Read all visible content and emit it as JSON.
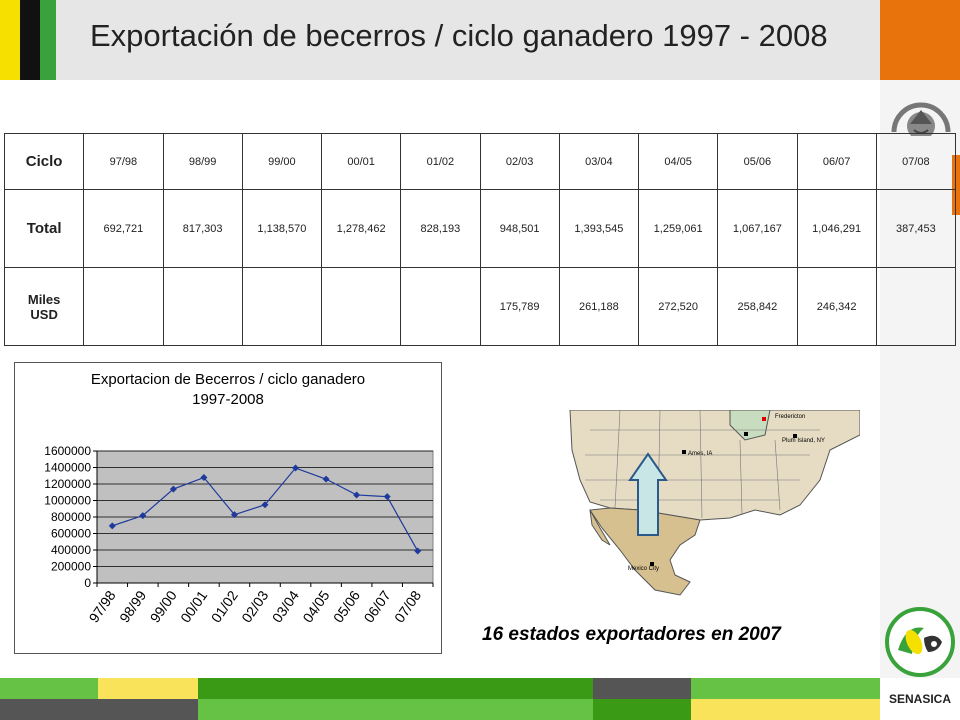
{
  "title": "Exportación de becerros / ciclo ganadero 1997 - 2008",
  "table": {
    "header_label": "Ciclo",
    "cycles": [
      "97/98",
      "98/99",
      "99/00",
      "00/01",
      "01/02",
      "02/03",
      "03/04",
      "04/05",
      "05/06",
      "06/07",
      "07/08"
    ],
    "total_label": "Total",
    "totals": [
      "692,721",
      "817,303",
      "1,138,570",
      "1,278,462",
      "828,193",
      "948,501",
      "1,393,545",
      "1,259,061",
      "1,067,167",
      "1,046,291",
      "387,453"
    ],
    "usd_label_1": "Miles",
    "usd_label_2": "USD",
    "usd": [
      "",
      "",
      "",
      "",
      "",
      "175,789",
      "261,188",
      "272,520",
      "258,842",
      "246,342",
      ""
    ]
  },
  "chart_data": {
    "type": "line",
    "title": "Exportacion de Becerros / ciclo ganadero",
    "subtitle": "1997-2008",
    "categories": [
      "97/98",
      "98/99",
      "99/00",
      "00/01",
      "01/02",
      "02/03",
      "03/04",
      "04/05",
      "05/06",
      "06/07",
      "07/08"
    ],
    "values": [
      692721,
      817303,
      1138570,
      1278462,
      828193,
      948501,
      1393545,
      1259061,
      1067167,
      1046291,
      387453
    ],
    "yticks": [
      "0",
      "200000",
      "400000",
      "600000",
      "800000",
      "1000000",
      "1200000",
      "1400000",
      "1600000"
    ],
    "ylim": [
      0,
      1600000
    ],
    "grid": true,
    "line_color": "#1f3a9c",
    "plot_bg": "#c0c0c0"
  },
  "map": {
    "labels": [
      "Fredericton",
      "Ames, IA",
      "Plum Island, NY",
      "Mexico City"
    ]
  },
  "caption": "16 estados exportadores en 2007",
  "footer": {
    "brand": "SENASICA"
  },
  "colors": {
    "orange": "#e8730c",
    "green": "#3aa23a",
    "yellow": "#f5e000"
  }
}
